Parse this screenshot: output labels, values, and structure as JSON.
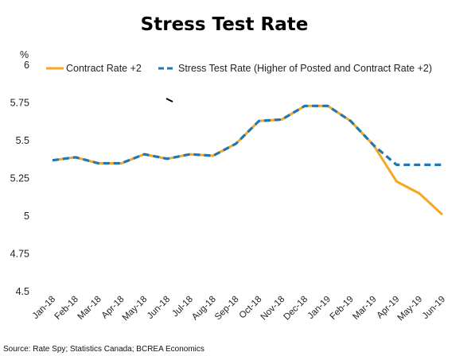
{
  "chart_data": {
    "type": "line",
    "title": "Stress Test Rate",
    "ylabel": "%",
    "xlabel": "",
    "ylim": [
      4.5,
      6
    ],
    "yticks": [
      "4.5",
      "4.75",
      "5",
      "5.25",
      "5.5",
      "5.75",
      "6"
    ],
    "yticks_values": [
      4.5,
      4.75,
      5,
      5.25,
      5.5,
      5.75,
      6
    ],
    "categories": [
      "Jan-18",
      "Feb-18",
      "Mar-18",
      "Apr-18",
      "May-18",
      "Jun-18",
      "Jul-18",
      "Aug-18",
      "Sep-18",
      "Oct-18",
      "Nov-18",
      "Dec-18",
      "Jan-19",
      "Feb-19",
      "Mar-19",
      "Apr-19",
      "May-19",
      "Jun-19"
    ],
    "series": [
      {
        "name": "Contract Rate +2",
        "color": "#F5A623",
        "style": "solid",
        "values": [
          5.37,
          5.39,
          5.35,
          5.35,
          5.41,
          5.38,
          5.41,
          5.4,
          5.48,
          5.63,
          5.64,
          5.73,
          5.73,
          5.63,
          5.47,
          5.23,
          5.15,
          5.01
        ]
      },
      {
        "name": "Stress Test Rate (Higher of Posted and Contract Rate +2)",
        "color": "#1F77B4",
        "style": "dashed",
        "values": [
          5.37,
          5.39,
          5.35,
          5.35,
          5.41,
          5.38,
          5.41,
          5.4,
          5.48,
          5.63,
          5.64,
          5.73,
          5.73,
          5.63,
          5.47,
          5.34,
          5.34,
          5.34
        ]
      }
    ],
    "grid": false,
    "legend_position": "top"
  },
  "source": "Source: Rate Spy; Statistics Canada; BCREA Economics"
}
